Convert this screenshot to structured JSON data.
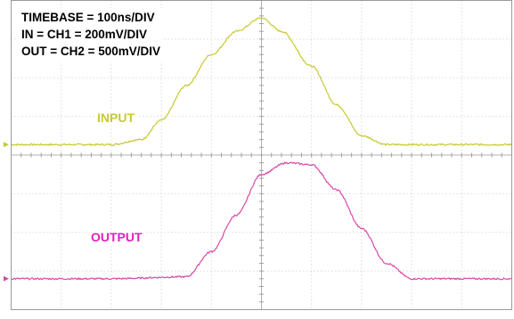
{
  "settings": {
    "timebase": "TIMEBASE = 100ns/DIV",
    "in_channel": "IN = CH1 = 200mV/DIV",
    "out_channel": "OUT = CH2 = 500mV/DIV"
  },
  "chart_data": {
    "type": "line",
    "title": "",
    "xlabel": "",
    "ylabel": "",
    "x_unit": "divisions",
    "y_unit": "divisions",
    "xlim": [
      0,
      10
    ],
    "ylim": [
      -4,
      4
    ],
    "grid": true,
    "grid_divisions": {
      "x": 10,
      "y": 8
    },
    "legend": "none",
    "series": [
      {
        "name": "INPUT",
        "color": "#c8c832",
        "x": [
          0,
          1.0,
          2.0,
          2.6,
          3.0,
          3.5,
          4.0,
          4.5,
          5.0,
          5.4,
          6.0,
          6.5,
          7.0,
          7.5,
          8.0,
          9.0,
          10
        ],
        "y": [
          0.27,
          0.27,
          0.27,
          0.4,
          0.9,
          1.8,
          2.6,
          3.2,
          3.55,
          3.2,
          2.3,
          1.3,
          0.5,
          0.27,
          0.27,
          0.27,
          0.27
        ]
      },
      {
        "name": "OUTPUT",
        "color": "#d84aa8",
        "x": [
          0,
          1.0,
          2.0,
          3.5,
          4.0,
          4.5,
          5.0,
          5.5,
          6.0,
          6.5,
          7.0,
          7.5,
          8.0,
          9.0,
          10
        ],
        "y": [
          -3.2,
          -3.2,
          -3.2,
          -3.15,
          -2.5,
          -1.55,
          -0.5,
          -0.2,
          -0.25,
          -0.9,
          -1.9,
          -2.8,
          -3.2,
          -3.2,
          -3.2
        ]
      }
    ]
  },
  "labels": {
    "input": "INPUT",
    "output": "OUTPUT",
    "input_color": "#c8c832",
    "output_color": "#e020c0"
  }
}
